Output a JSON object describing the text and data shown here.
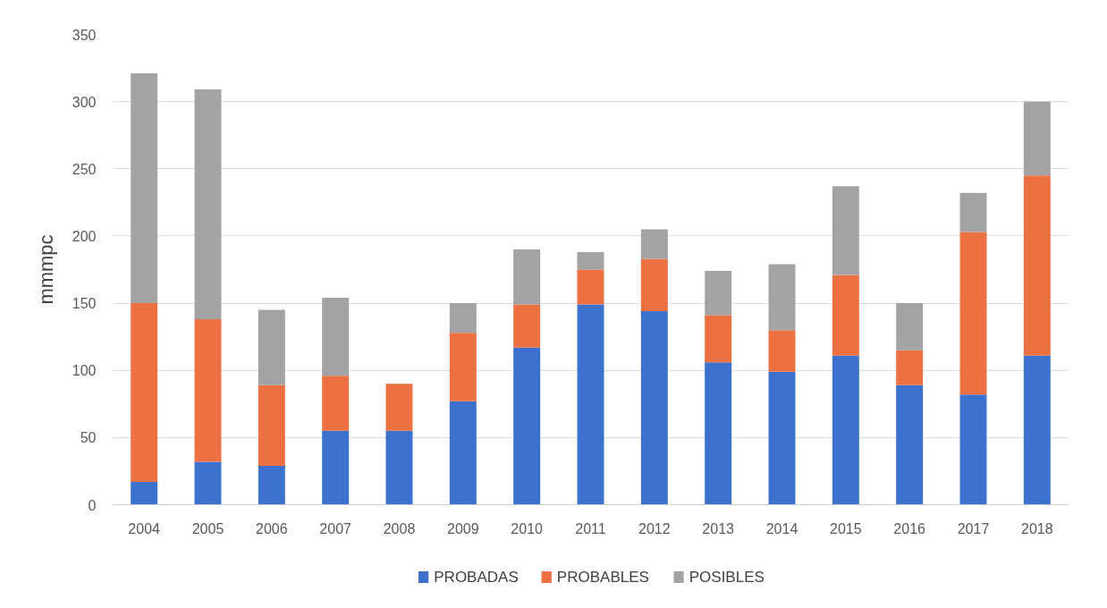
{
  "chart_data": {
    "type": "bar",
    "stacked": true,
    "ylabel": "mmmpc",
    "categories": [
      "2004",
      "2005",
      "2006",
      "2007",
      "2008",
      "2009",
      "2010",
      "2011",
      "2012",
      "2013",
      "2014",
      "2015",
      "2016",
      "2017",
      "2018"
    ],
    "series": [
      {
        "name": "PROBADAS",
        "color": "#3c71cd",
        "values": [
          17,
          32,
          29,
          55,
          55,
          77,
          117,
          149,
          144,
          106,
          99,
          111,
          89,
          82,
          111
        ]
      },
      {
        "name": "PROBABLES",
        "color": "#ec7142",
        "values": [
          133,
          106,
          60,
          41,
          35,
          51,
          32,
          26,
          39,
          35,
          31,
          60,
          26,
          121,
          134
        ]
      },
      {
        "name": "POSIBLES",
        "color": "#a3a3a5",
        "values": [
          171,
          171,
          56,
          58,
          null,
          22,
          41,
          13,
          22,
          33,
          49,
          66,
          35,
          29,
          55
        ]
      }
    ],
    "ylim": [
      0,
      350
    ],
    "yticks": [
      0,
      50,
      100,
      150,
      200,
      250,
      300,
      350
    ],
    "grid": "y",
    "legend": "bottom"
  }
}
